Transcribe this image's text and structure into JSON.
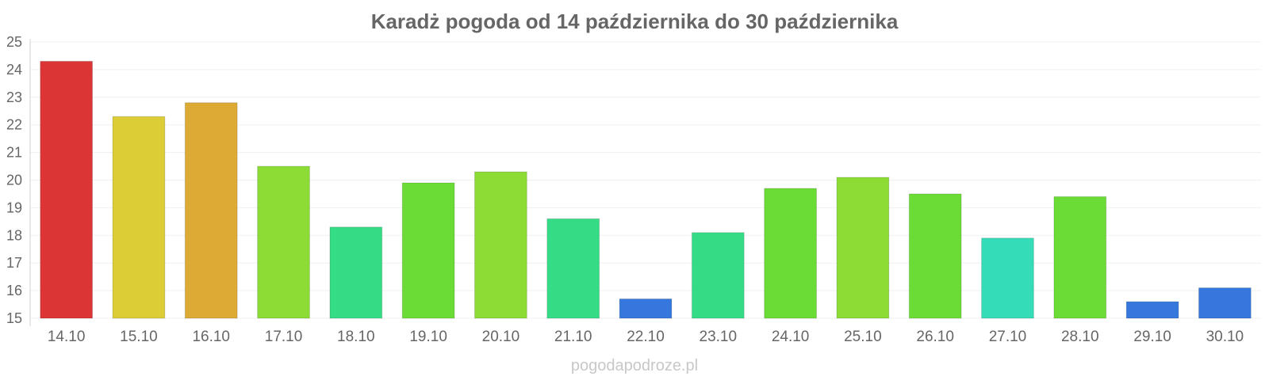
{
  "chart_data": {
    "type": "bar",
    "title": "Karadż pogoda od 14 października do 30 października",
    "xlabel": "",
    "ylabel": "",
    "categories": [
      "14.10",
      "15.10",
      "16.10",
      "17.10",
      "18.10",
      "19.10",
      "20.10",
      "21.10",
      "22.10",
      "23.10",
      "24.10",
      "25.10",
      "26.10",
      "27.10",
      "28.10",
      "29.10",
      "30.10"
    ],
    "values": [
      24.3,
      22.3,
      22.8,
      20.5,
      18.3,
      19.9,
      20.3,
      18.6,
      15.7,
      18.1,
      19.7,
      20.1,
      19.5,
      17.9,
      19.4,
      15.6,
      16.1
    ],
    "colors": [
      "#dc3535",
      "#dccc35",
      "#dcaa35",
      "#8cdc35",
      "#35dc86",
      "#6adc35",
      "#8cdc35",
      "#35dc86",
      "#3577dc",
      "#35dc86",
      "#6adc35",
      "#8cdc35",
      "#6adc35",
      "#35dcb8",
      "#6adc35",
      "#3577dc",
      "#3577dc"
    ],
    "ylim": [
      15,
      25
    ],
    "yticks": [
      15,
      16,
      17,
      18,
      19,
      20,
      21,
      22,
      23,
      24,
      25
    ],
    "grid": true,
    "legend": "none"
  },
  "watermark": "pogodapodroze.pl"
}
